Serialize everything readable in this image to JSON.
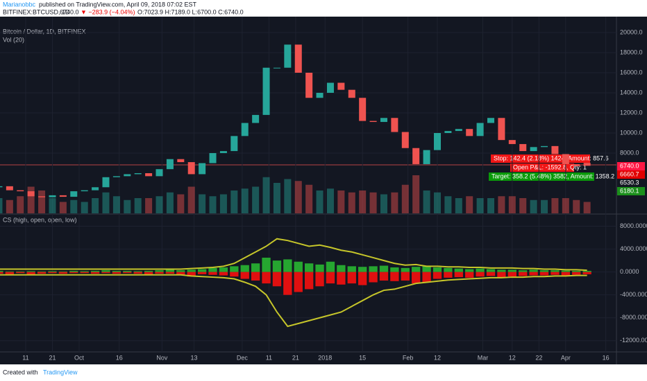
{
  "header": {
    "author": "Marianobbc",
    "published": "published on TradingView.com, April 09, 2018 07:02 EST",
    "ticker": "BITFINEX:BTCUSD, 1D",
    "last": "6740.0",
    "change": "▼ −283.9 (−4.04%)",
    "ohlc": "O:7023.9 H:7189.0 L:6700.0 C:6740.0"
  },
  "footer": {
    "created": "Created with",
    "brand": "TradingView"
  },
  "chart_data": [
    {
      "type": "candlestick",
      "title": "Bitcoin / Dollar, 1D, BITFINEX",
      "volume_title": "Vol (20)",
      "x": [
        0,
        4,
        8,
        12,
        16,
        20,
        24,
        28,
        32,
        36,
        40,
        44,
        48,
        52,
        56,
        60,
        64,
        68,
        72,
        76,
        80,
        84,
        88,
        92,
        96,
        100,
        104,
        108,
        112,
        116,
        120,
        124,
        128,
        132,
        136,
        140,
        144,
        148,
        152,
        156,
        160,
        164,
        168,
        172,
        176,
        180,
        184,
        188,
        192,
        196,
        200,
        204,
        208,
        212,
        216,
        220
      ],
      "open": [
        4600,
        4700,
        4300,
        4200,
        3700,
        3600,
        3800,
        3650,
        4200,
        4300,
        4600,
        5600,
        5700,
        5900,
        6000,
        5700,
        6400,
        7400,
        7100,
        5900,
        7000,
        8000,
        8200,
        9700,
        11000,
        11800,
        16500,
        16500,
        18800,
        16000,
        13500,
        14000,
        15000,
        14300,
        13500,
        11200,
        11100,
        11500,
        10100,
        8500,
        6900,
        8300,
        10000,
        10200,
        10400,
        9700,
        11000,
        11500,
        9300,
        8900,
        8200,
        8600,
        8700,
        7900,
        6900,
        7023.9
      ],
      "close": [
        4700,
        4300,
        4200,
        3700,
        3600,
        3800,
        3650,
        4200,
        4300,
        4600,
        5600,
        5700,
        5900,
        6000,
        5700,
        6400,
        7400,
        7100,
        5900,
        7000,
        8000,
        8200,
        9700,
        11000,
        11800,
        16500,
        16500,
        18800,
        16000,
        13500,
        14000,
        15000,
        14300,
        13500,
        11200,
        11100,
        11500,
        10100,
        8500,
        6900,
        8300,
        10000,
        10200,
        10400,
        9700,
        11000,
        11500,
        9300,
        8900,
        8200,
        8600,
        8700,
        7900,
        6900,
        6700,
        6740
      ],
      "volume": [
        40,
        35,
        45,
        70,
        60,
        40,
        30,
        35,
        30,
        40,
        55,
        45,
        35,
        40,
        40,
        45,
        55,
        50,
        70,
        50,
        45,
        50,
        60,
        65,
        70,
        95,
        80,
        90,
        85,
        75,
        60,
        65,
        60,
        55,
        60,
        55,
        50,
        55,
        75,
        100,
        60,
        55,
        45,
        40,
        45,
        40,
        40,
        45,
        45,
        40,
        35,
        35,
        40,
        40,
        35,
        30
      ],
      "xlim": [
        0.4,
        231
      ],
      "xticks": [
        {
          "value": 10,
          "label": "11"
        },
        {
          "value": 20,
          "label": "21"
        },
        {
          "value": 30,
          "label": "Oct"
        },
        {
          "value": 45,
          "label": "16"
        },
        {
          "value": 61,
          "label": "Nov"
        },
        {
          "value": 73,
          "label": "13"
        },
        {
          "value": 91,
          "label": "Dec"
        },
        {
          "value": 101,
          "label": "11"
        },
        {
          "value": 111,
          "label": "21"
        },
        {
          "value": 122,
          "label": "2018"
        },
        {
          "value": 136,
          "label": "15"
        },
        {
          "value": 153,
          "label": "Feb"
        },
        {
          "value": 164,
          "label": "12"
        },
        {
          "value": 181,
          "label": "Mar"
        },
        {
          "value": 192,
          "label": "12"
        },
        {
          "value": 202,
          "label": "22"
        },
        {
          "value": 212,
          "label": "Apr"
        },
        {
          "value": 227,
          "label": "16"
        }
      ],
      "ylim": [
        2000,
        20620
      ],
      "yticks": [
        {
          "value": 8000,
          "label": "8000.0"
        },
        {
          "value": 10000,
          "label": "10000.0"
        },
        {
          "value": 12000,
          "label": "12000.0"
        },
        {
          "value": 14000,
          "label": "14000.0"
        },
        {
          "value": 16000,
          "label": "16000.0"
        },
        {
          "value": 18000,
          "label": "18000.0"
        },
        {
          "value": 20000,
          "label": "20000.0"
        }
      ],
      "up_color": "#26a69a",
      "down_color": "#ef5350",
      "price_labels": [
        {
          "value": 6740,
          "label": "6740.0",
          "color": "#ff1744"
        },
        {
          "value": 6660.7,
          "label": "6660.7",
          "color": "#e00000"
        },
        {
          "value": 6530.3,
          "label": "6530.3",
          "color": "#131722"
        },
        {
          "value": 6180.1,
          "label": "6180.1",
          "color": "#1b8f1b"
        }
      ],
      "annotations": [
        "Stop: 142.4 (2.18%) 1424, Amount: 857.6",
        "Open P&L: -1592.8, Qty: 1",
        "Target: 358.2 (5.48%) 3582, Amount: 1358.2"
      ]
    },
    {
      "type": "indicator",
      "title": "CS (high, open, open, low)",
      "x": [
        0,
        4,
        8,
        12,
        16,
        20,
        24,
        28,
        32,
        36,
        40,
        44,
        48,
        52,
        56,
        60,
        64,
        68,
        72,
        76,
        80,
        84,
        88,
        92,
        96,
        100,
        104,
        108,
        112,
        116,
        120,
        124,
        128,
        132,
        136,
        140,
        144,
        148,
        152,
        156,
        160,
        164,
        168,
        172,
        176,
        180,
        184,
        188,
        192,
        196,
        200,
        204,
        208,
        212,
        216,
        220
      ],
      "series": [
        {
          "name": "up",
          "color": "#26a630",
          "values": [
            200,
            100,
            100,
            150,
            100,
            150,
            100,
            200,
            150,
            200,
            300,
            200,
            200,
            150,
            200,
            300,
            400,
            300,
            400,
            500,
            700,
            800,
            1000,
            1200,
            1500,
            2500,
            2000,
            2200,
            1800,
            1500,
            1300,
            1800,
            1200,
            1000,
            900,
            1000,
            1100,
            800,
            700,
            900,
            1000,
            800,
            700,
            600,
            500,
            600,
            500,
            400,
            400,
            300,
            400,
            300,
            300,
            250,
            200,
            200
          ]
        },
        {
          "name": "down",
          "color": "#e01010",
          "values": [
            -300,
            -400,
            -200,
            -500,
            -300,
            -200,
            -300,
            -200,
            -200,
            -300,
            -200,
            -300,
            -200,
            -300,
            -400,
            -300,
            -300,
            -500,
            -800,
            -400,
            -500,
            -600,
            -800,
            -1200,
            -1500,
            -2000,
            -2500,
            -4000,
            -3500,
            -3000,
            -2500,
            -2000,
            -2200,
            -2000,
            -2300,
            -1800,
            -1500,
            -1600,
            -1500,
            -2000,
            -1800,
            -1200,
            -1000,
            -900,
            -1000,
            -800,
            -700,
            -900,
            -800,
            -700,
            -600,
            -600,
            -500,
            -600,
            -500,
            -400
          ]
        },
        {
          "name": "upper",
          "color": "#c6c62a",
          "values": [
            500,
            500,
            500,
            500,
            500,
            500,
            500,
            500,
            500,
            500,
            500,
            500,
            500,
            500,
            500,
            500,
            500,
            500,
            600,
            700,
            800,
            1000,
            1500,
            2500,
            3500,
            4500,
            5800,
            5500,
            5000,
            4500,
            4700,
            4300,
            3800,
            3500,
            3000,
            2500,
            2000,
            1500,
            1200,
            1300,
            1000,
            1000,
            900,
            900,
            800,
            800,
            700,
            700,
            700,
            600,
            600,
            500,
            500,
            400,
            400,
            300
          ]
        },
        {
          "name": "lower",
          "color": "#c6c62a",
          "values": [
            -500,
            -500,
            -500,
            -500,
            -500,
            -500,
            -500,
            -500,
            -500,
            -500,
            -500,
            -500,
            -500,
            -500,
            -500,
            -500,
            -500,
            -500,
            -700,
            -800,
            -900,
            -1000,
            -1200,
            -1800,
            -2500,
            -4000,
            -7000,
            -9500,
            -9000,
            -8500,
            -8000,
            -7500,
            -7000,
            -6000,
            -5000,
            -4000,
            -3200,
            -3000,
            -2500,
            -2000,
            -1800,
            -1600,
            -1400,
            -1300,
            -1200,
            -1100,
            -1000,
            -1000,
            -900,
            -900,
            -800,
            -800,
            -700,
            -700,
            -600,
            -600
          ]
        }
      ],
      "xlim": [
        0.4,
        231
      ],
      "ylim": [
        -13600,
        10000
      ],
      "yticks": [
        {
          "value": -12000,
          "label": "-12000.0000"
        },
        {
          "value": -8000,
          "label": "-8000.0000"
        },
        {
          "value": -4000,
          "label": "-4000.0000"
        },
        {
          "value": 0,
          "label": "0.0000"
        },
        {
          "value": 4000,
          "label": "4000.0000"
        },
        {
          "value": 8000,
          "label": "8000.0000"
        }
      ]
    }
  ]
}
